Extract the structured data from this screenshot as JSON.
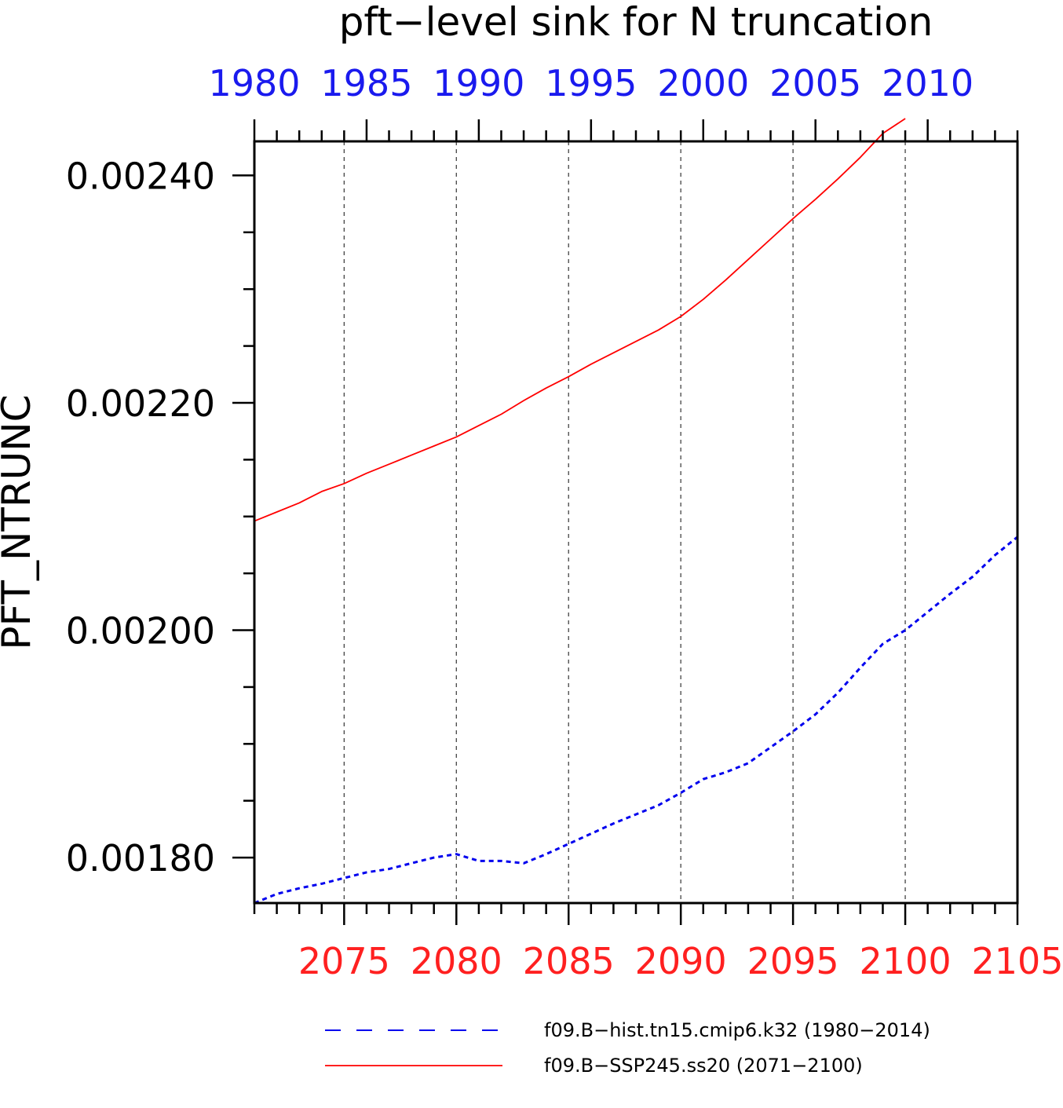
{
  "chart_data": {
    "type": "line",
    "title": "pft−level sink for N truncation",
    "ylabel": "PFT_NTRUNC",
    "xlabel": "",
    "ylim": [
      0.00176,
      0.00243
    ],
    "yticks": [
      "0.00180",
      "0.00200",
      "0.00220",
      "0.00240"
    ],
    "yticks_values": [
      0.0018,
      0.002,
      0.0022,
      0.0024
    ],
    "bottom_axis": {
      "range": [
        2071,
        2105
      ],
      "tick_values": [
        2075,
        2080,
        2085,
        2090,
        2095,
        2100,
        2105
      ],
      "tick_labels": [
        "2075",
        "2080",
        "2085",
        "2090",
        "2095",
        "2100",
        "2105"
      ],
      "color": "#ff2020"
    },
    "top_axis": {
      "range": [
        1980,
        2014
      ],
      "tick_values": [
        1980,
        1985,
        1990,
        1995,
        2000,
        2005,
        2010
      ],
      "tick_labels": [
        "1980",
        "1985",
        "1990",
        "1995",
        "2000",
        "2005",
        "2010"
      ],
      "color": "#1a1aee"
    },
    "grid": "vertical dashed at bottom-axis major ticks",
    "legend_placement": "bottom",
    "series": [
      {
        "name": "f09.B−hist.tn15.cmip6.k32 (1980−2014)",
        "axis": "top",
        "style": "dashed",
        "color": "#0000ee",
        "x": [
          1980,
          1981,
          1982,
          1983,
          1984,
          1985,
          1986,
          1987,
          1988,
          1989,
          1990,
          1991,
          1992,
          1993,
          1994,
          1995,
          1996,
          1997,
          1998,
          1999,
          2000,
          2001,
          2002,
          2003,
          2004,
          2005,
          2006,
          2007,
          2008,
          2009,
          2010,
          2011,
          2012,
          2013,
          2014
        ],
        "y": [
          0.00176,
          0.001768,
          0.001773,
          0.001777,
          0.001782,
          0.001787,
          0.00179,
          0.001795,
          0.0018,
          0.001803,
          0.001797,
          0.001797,
          0.001795,
          0.001803,
          0.001812,
          0.001821,
          0.00183,
          0.001838,
          0.001846,
          0.001857,
          0.001869,
          0.001875,
          0.001883,
          0.001897,
          0.001911,
          0.001926,
          0.001945,
          0.001967,
          0.001988,
          0.002,
          0.002016,
          0.002032,
          0.002047,
          0.002066,
          0.002082
        ]
      },
      {
        "name": "f09.B−SSP245.ss20 (2071−2100)",
        "axis": "bottom",
        "style": "solid",
        "color": "#ff0000",
        "x": [
          2071,
          2072,
          2073,
          2074,
          2075,
          2076,
          2077,
          2078,
          2079,
          2080,
          2081,
          2082,
          2083,
          2084,
          2085,
          2086,
          2087,
          2088,
          2089,
          2090,
          2091,
          2092,
          2093,
          2094,
          2095,
          2096,
          2097,
          2098,
          2099,
          2100
        ],
        "y": [
          0.002096,
          0.002104,
          0.002112,
          0.002122,
          0.002129,
          0.002138,
          0.002146,
          0.002154,
          0.002162,
          0.00217,
          0.00218,
          0.00219,
          0.002202,
          0.002213,
          0.002223,
          0.002234,
          0.002244,
          0.002254,
          0.002264,
          0.002276,
          0.002291,
          0.002308,
          0.002326,
          0.002344,
          0.002362,
          0.002379,
          0.002397,
          0.002416,
          0.002437,
          0.00245
        ]
      }
    ]
  }
}
